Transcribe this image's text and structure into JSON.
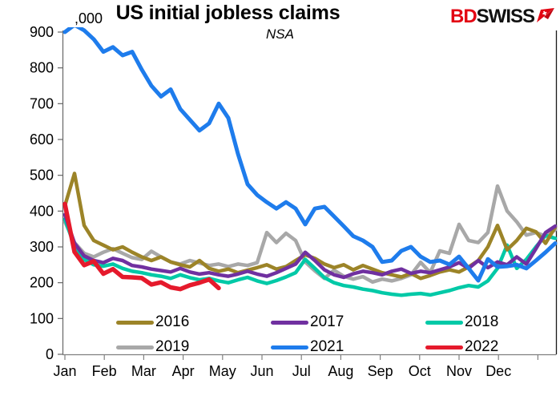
{
  "header": {
    "title": "US initial jobless claims",
    "subtitle": "NSA",
    "logo": {
      "part1": "BD",
      "part2": "SWISS",
      "part1_color": "#e30613",
      "part2_color": "#111111",
      "arrow_color": "#e30613"
    }
  },
  "chart_data": {
    "type": "line",
    "title": "US initial jobless claims",
    "subtitle": "NSA",
    "unit_label": ",000",
    "grid": false,
    "legend_position": "bottom-inside",
    "x_axis": {
      "categories": [
        "Jan",
        "Feb",
        "Mar",
        "Apr",
        "May",
        "Jun",
        "Jul",
        "Aug",
        "Sep",
        "Oct",
        "Nov",
        "Dec"
      ],
      "points_per_series": 52,
      "note": "weekly data, thousands of claims, not seasonally adjusted"
    },
    "y_axis": {
      "min": 0,
      "max": 900,
      "step": 100,
      "tick_labels": [
        "0",
        "100",
        "200",
        "300",
        "400",
        "500",
        "600",
        "700",
        "800",
        "900"
      ]
    },
    "series": [
      {
        "name": "2016",
        "color": "#9c8428",
        "width": 4.5,
        "values": [
          415,
          505,
          360,
          318,
          305,
          292,
          300,
          285,
          272,
          262,
          272,
          258,
          250,
          244,
          262,
          240,
          232,
          238,
          228,
          235,
          242,
          250,
          238,
          245,
          262,
          278,
          268,
          252,
          242,
          250,
          236,
          248,
          238,
          228,
          222,
          216,
          226,
          212,
          220,
          230,
          236,
          230,
          244,
          262,
          300,
          360,
          292,
          318,
          352,
          342,
          310,
          355
        ]
      },
      {
        "name": "2017",
        "color": "#7030a0",
        "width": 4.5,
        "values": [
          390,
          310,
          275,
          262,
          256,
          268,
          262,
          248,
          244,
          238,
          234,
          230,
          240,
          230,
          224,
          228,
          222,
          218,
          224,
          232,
          224,
          218,
          228,
          240,
          252,
          285,
          262,
          236,
          222,
          215,
          225,
          232,
          228,
          222,
          232,
          238,
          226,
          232,
          228,
          236,
          244,
          256,
          240,
          262,
          242,
          258,
          250,
          272,
          252,
          295,
          340,
          358
        ]
      },
      {
        "name": "2018",
        "color": "#00c9a7",
        "width": 4.5,
        "values": [
          378,
          302,
          265,
          250,
          246,
          252,
          240,
          232,
          228,
          222,
          218,
          212,
          222,
          214,
          208,
          212,
          205,
          200,
          208,
          215,
          205,
          198,
          206,
          216,
          228,
          265,
          240,
          214,
          200,
          192,
          188,
          182,
          178,
          172,
          168,
          165,
          168,
          170,
          166,
          172,
          178,
          186,
          192,
          188,
          205,
          240,
          305,
          240,
          265,
          300,
          332,
          324
        ]
      },
      {
        "name": "2019",
        "color": "#a8a8a8",
        "width": 4.5,
        "values": [
          370,
          312,
          282,
          272,
          285,
          295,
          282,
          270,
          265,
          288,
          272,
          258,
          252,
          262,
          255,
          248,
          252,
          245,
          252,
          248,
          256,
          340,
          312,
          338,
          318,
          258,
          233,
          212,
          235,
          218,
          210,
          217,
          202,
          210,
          205,
          212,
          222,
          257,
          228,
          289,
          282,
          363,
          318,
          312,
          340,
          470,
          400,
          370,
          333,
          340,
          330,
          348
        ]
      },
      {
        "name": "2021",
        "color": "#1e7cec",
        "width": 5,
        "values": [
          900,
          920,
          905,
          880,
          845,
          858,
          835,
          845,
          795,
          750,
          720,
          740,
          685,
          655,
          625,
          645,
          700,
          660,
          560,
          475,
          445,
          425,
          407,
          425,
          407,
          363,
          407,
          412,
          385,
          358,
          330,
          318,
          300,
          258,
          262,
          289,
          300,
          273,
          258,
          262,
          251,
          273,
          240,
          206,
          266,
          244,
          246,
          250,
          240,
          262,
          285,
          310
        ]
      },
      {
        "name": "2022",
        "color": "#e51a2c",
        "width": 5.5,
        "values": [
          420,
          286,
          249,
          260,
          225,
          238,
          216,
          215,
          213,
          195,
          201,
          187,
          182,
          193,
          200,
          209,
          185
        ]
      }
    ],
    "draw_order": [
      "2019",
      "2018",
      "2016",
      "2017",
      "2021",
      "2022"
    ],
    "legend_rows": [
      [
        "2016",
        "2017",
        "2018"
      ],
      [
        "2019",
        "2021",
        "2022"
      ]
    ]
  },
  "colors": {
    "y_axis": "#666666",
    "x_axis": "#808080",
    "right_border": "#1a1a1a",
    "label_text": "#000000"
  }
}
